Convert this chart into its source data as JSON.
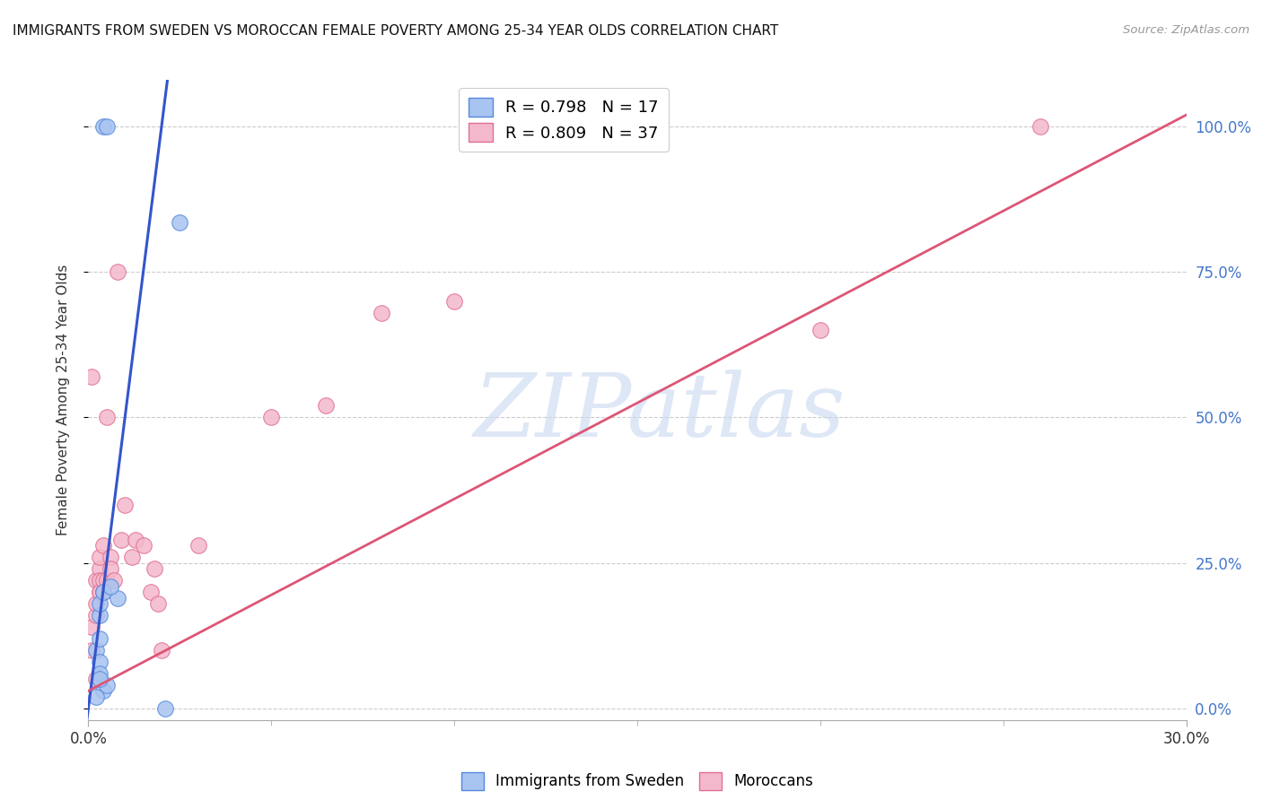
{
  "title": "IMMIGRANTS FROM SWEDEN VS MOROCCAN FEMALE POVERTY AMONG 25-34 YEAR OLDS CORRELATION CHART",
  "source": "Source: ZipAtlas.com",
  "ylabel_label": "Female Poverty Among 25-34 Year Olds",
  "legend_blue_r": "R = 0.798",
  "legend_blue_n": "N = 17",
  "legend_pink_r": "R = 0.809",
  "legend_pink_n": "N = 37",
  "legend_blue_label": "Immigrants from Sweden",
  "legend_pink_label": "Moroccans",
  "blue_scatter_color": "#a8c4f0",
  "blue_edge_color": "#5588dd",
  "pink_scatter_color": "#f4b8cc",
  "pink_edge_color": "#e07090",
  "blue_line_color": "#3355cc",
  "pink_line_color": "#dd5577",
  "watermark_color": "#c8d8f0",
  "right_tick_color": "#4477cc",
  "watermark": "ZIPatlas",
  "blue_scatter_x": [
    0.004,
    0.005,
    0.025,
    0.021,
    0.003,
    0.003,
    0.002,
    0.003,
    0.003,
    0.004,
    0.003,
    0.004,
    0.005,
    0.008,
    0.006,
    0.002,
    0.003
  ],
  "blue_scatter_y": [
    1.0,
    1.0,
    0.835,
    0.0,
    0.16,
    0.18,
    0.1,
    0.12,
    0.08,
    0.2,
    0.06,
    0.03,
    0.04,
    0.19,
    0.21,
    0.02,
    0.05
  ],
  "pink_scatter_x": [
    0.001,
    0.001,
    0.001,
    0.002,
    0.002,
    0.002,
    0.002,
    0.003,
    0.003,
    0.003,
    0.003,
    0.003,
    0.004,
    0.004,
    0.004,
    0.005,
    0.005,
    0.006,
    0.006,
    0.007,
    0.008,
    0.009,
    0.01,
    0.012,
    0.013,
    0.015,
    0.017,
    0.018,
    0.019,
    0.02,
    0.03,
    0.05,
    0.065,
    0.08,
    0.1,
    0.2,
    0.26
  ],
  "pink_scatter_y": [
    0.1,
    0.14,
    0.57,
    0.16,
    0.18,
    0.22,
    0.05,
    0.2,
    0.24,
    0.22,
    0.26,
    0.2,
    0.2,
    0.22,
    0.28,
    0.22,
    0.5,
    0.26,
    0.24,
    0.22,
    0.75,
    0.29,
    0.35,
    0.26,
    0.29,
    0.28,
    0.2,
    0.24,
    0.18,
    0.1,
    0.28,
    0.5,
    0.52,
    0.68,
    0.7,
    0.65,
    1.0
  ],
  "xlim": [
    0.0,
    0.3
  ],
  "ylim": [
    -0.02,
    1.08
  ],
  "blue_line_x": [
    -0.001,
    0.022
  ],
  "blue_line_y": [
    -0.05,
    1.1
  ],
  "pink_line_x": [
    0.0,
    0.3
  ],
  "pink_line_y": [
    0.03,
    1.02
  ]
}
